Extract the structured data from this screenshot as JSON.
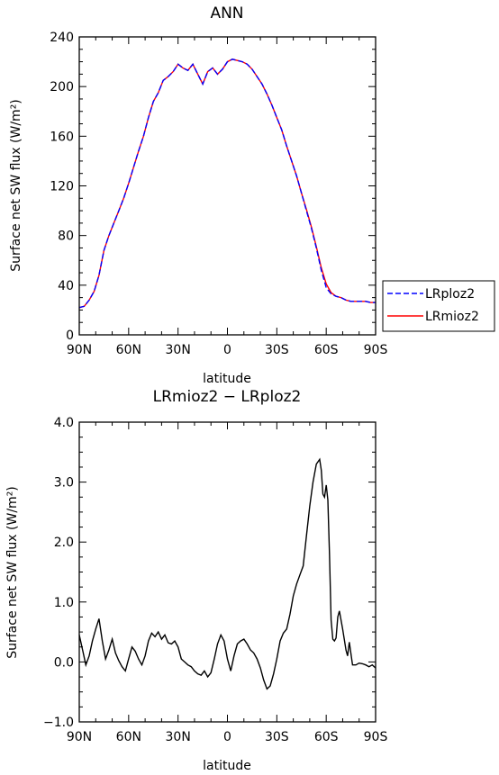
{
  "chart_data": [
    {
      "type": "line",
      "title": "ANN",
      "xlabel": "latitude",
      "ylabel": "Surface net SW flux (W/m²)",
      "ylim": [
        0,
        240
      ],
      "yticks": [
        0,
        40,
        80,
        120,
        160,
        200,
        240
      ],
      "yticklabels": [
        "0",
        "40",
        "80",
        "120",
        "160",
        "200",
        "240"
      ],
      "xlim": [
        90,
        -90
      ],
      "xticks": [
        90,
        60,
        30,
        0,
        -30,
        -60,
        -90
      ],
      "xticklabels": [
        "90N",
        "60N",
        "30N",
        "0",
        "30S",
        "60S",
        "90S"
      ],
      "grid": false,
      "legend": "right",
      "x": [
        90,
        87,
        84,
        81,
        78,
        75,
        72,
        69,
        66,
        63,
        60,
        57,
        54,
        51,
        48,
        45,
        42,
        39,
        36,
        33,
        30,
        27,
        24,
        21,
        18,
        15,
        12,
        9,
        6,
        3,
        0,
        -3,
        -6,
        -9,
        -12,
        -15,
        -18,
        -21,
        -24,
        -27,
        -30,
        -33,
        -36,
        -39,
        -42,
        -45,
        -48,
        -51,
        -54,
        -57,
        -60,
        -63,
        -66,
        -69,
        -72,
        -75,
        -78,
        -81,
        -84,
        -87,
        -90
      ],
      "series": [
        {
          "name": "LRploz2",
          "color": "#0000ff",
          "dash": "dashed",
          "values": [
            22,
            23,
            28,
            35,
            48,
            68,
            80,
            90,
            100,
            110,
            122,
            135,
            148,
            160,
            175,
            188,
            195,
            205,
            208,
            212,
            218,
            215,
            213,
            218,
            210,
            202,
            212,
            215,
            210,
            214,
            220,
            222,
            221,
            220,
            218,
            214,
            208,
            202,
            194,
            185,
            175,
            165,
            152,
            140,
            128,
            114,
            100,
            86,
            70,
            52,
            38,
            33,
            31,
            30,
            28,
            27,
            27,
            27,
            27,
            26,
            26
          ]
        },
        {
          "name": "LRmioz2",
          "color": "#ff0000",
          "dash": "solid",
          "values": [
            22,
            23,
            28,
            35,
            48,
            68,
            80,
            90,
            100,
            110,
            122,
            135,
            148,
            160,
            175,
            188,
            195,
            205,
            208,
            212,
            218,
            215,
            213,
            218,
            210,
            202,
            212,
            215,
            210,
            214,
            220,
            222,
            221,
            220,
            218,
            214,
            208,
            202,
            194,
            185,
            175,
            165,
            152,
            140,
            128,
            114,
            101,
            87,
            71,
            54,
            41,
            34,
            31,
            30,
            28,
            27,
            27,
            27,
            27,
            26,
            26
          ]
        }
      ]
    },
    {
      "type": "line",
      "title": "LRmioz2 − LRploz2",
      "xlabel": "latitude",
      "ylabel": "Surface net SW flux (W/m²)",
      "ylim": [
        -1.0,
        4.0
      ],
      "yticks": [
        -1.0,
        0.0,
        1.0,
        2.0,
        3.0,
        4.0
      ],
      "yticklabels": [
        "−1.0",
        "0.0",
        "1.0",
        "2.0",
        "3.0",
        "4.0"
      ],
      "xlim": [
        90,
        -90
      ],
      "xticks": [
        90,
        60,
        30,
        0,
        -30,
        -60,
        -90
      ],
      "xticklabels": [
        "90N",
        "60N",
        "30N",
        "0",
        "30S",
        "60S",
        "90S"
      ],
      "grid": false,
      "legend": "none",
      "series": [
        {
          "color": "#000000",
          "x": [
            90,
            88,
            86,
            84,
            82,
            80,
            78,
            76,
            74,
            72,
            70,
            68,
            66,
            64,
            62,
            60,
            58,
            56,
            54,
            52,
            50,
            48,
            46,
            44,
            42,
            40,
            38,
            36,
            34,
            32,
            30,
            28,
            26,
            24,
            22,
            20,
            18,
            16,
            14,
            12,
            10,
            8,
            6,
            4,
            2,
            0,
            -2,
            -4,
            -6,
            -8,
            -10,
            -12,
            -14,
            -16,
            -18,
            -20,
            -22,
            -24,
            -26,
            -28,
            -30,
            -32,
            -34,
            -36,
            -38,
            -40,
            -42,
            -44,
            -46,
            -48,
            -50,
            -52,
            -54,
            -56,
            -57,
            -58,
            -59,
            -60,
            -61,
            -62,
            -63,
            -64,
            -65,
            -66,
            -67,
            -68,
            -70,
            -72,
            -73,
            -74,
            -76,
            -78,
            -80,
            -82,
            -84,
            -86,
            -88,
            -90
          ],
          "values": [
            0.45,
            0.2,
            -0.05,
            0.1,
            0.35,
            0.55,
            0.72,
            0.35,
            0.05,
            0.2,
            0.38,
            0.15,
            0.02,
            -0.08,
            -0.15,
            0.05,
            0.25,
            0.18,
            0.05,
            -0.05,
            0.1,
            0.35,
            0.48,
            0.42,
            0.5,
            0.38,
            0.45,
            0.32,
            0.3,
            0.35,
            0.25,
            0.05,
            0.0,
            -0.05,
            -0.08,
            -0.15,
            -0.2,
            -0.22,
            -0.15,
            -0.25,
            -0.18,
            0.05,
            0.3,
            0.45,
            0.35,
            0.05,
            -0.15,
            0.1,
            0.3,
            0.35,
            0.38,
            0.3,
            0.2,
            0.15,
            0.05,
            -0.1,
            -0.3,
            -0.45,
            -0.4,
            -0.2,
            0.05,
            0.35,
            0.48,
            0.55,
            0.8,
            1.1,
            1.3,
            1.45,
            1.6,
            2.1,
            2.6,
            3.0,
            3.3,
            3.38,
            3.2,
            2.8,
            2.75,
            2.95,
            2.7,
            1.8,
            0.7,
            0.38,
            0.35,
            0.4,
            0.75,
            0.85,
            0.55,
            0.2,
            0.1,
            0.33,
            -0.05,
            -0.05,
            -0.02,
            -0.03,
            -0.05,
            -0.08,
            -0.05,
            -0.1
          ]
        }
      ]
    }
  ]
}
